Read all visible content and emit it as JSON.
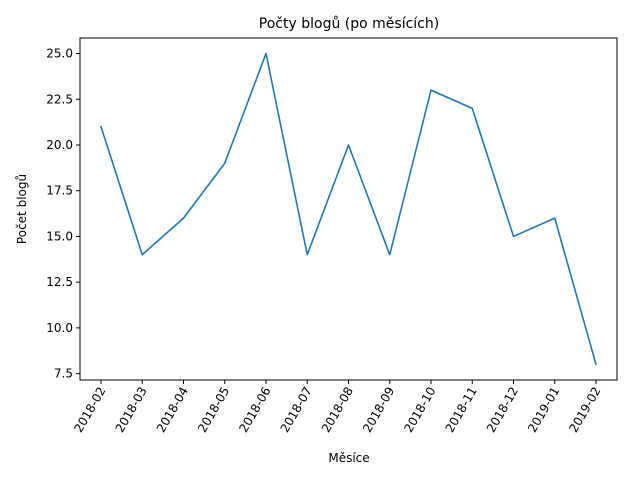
{
  "chart_data": {
    "type": "line",
    "title": "Počty blogů (po měsících)",
    "xlabel": "Měsíce",
    "ylabel": "Počet blogů",
    "categories": [
      "2018-02",
      "2018-03",
      "2018-04",
      "2018-05",
      "2018-06",
      "2018-07",
      "2018-08",
      "2018-09",
      "2018-10",
      "2018-11",
      "2018-12",
      "2019-01",
      "2019-02"
    ],
    "series": [
      {
        "values": [
          21,
          14,
          16,
          19,
          25,
          14,
          20,
          14,
          23,
          22,
          15,
          16,
          8
        ],
        "color": "#1f77b4"
      }
    ],
    "yticks": [
      "7.5",
      "10.0",
      "12.5",
      "15.0",
      "17.5",
      "20.0",
      "22.5",
      "25.0"
    ],
    "ylim": [
      7.15,
      25.85
    ],
    "grid": false,
    "x_tick_rotation": 60
  }
}
